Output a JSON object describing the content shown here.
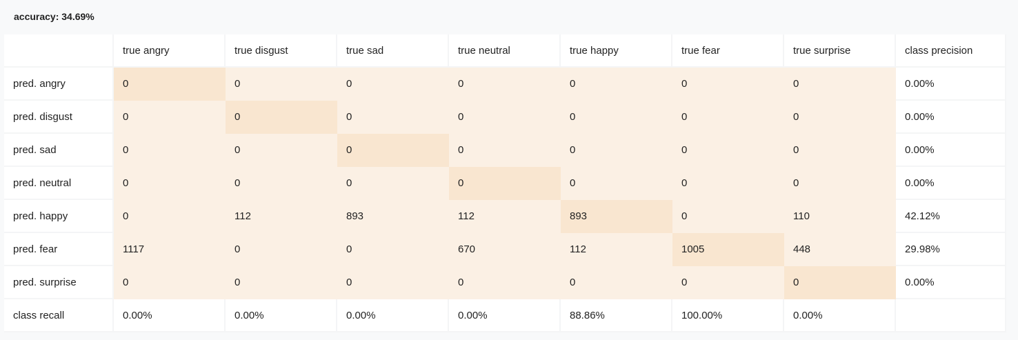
{
  "accuracy_label": "accuracy: 34.69%",
  "colors": {
    "cell": "#fbf0e4",
    "diagonal": "#f9e6d0",
    "background": "#f8f9fa"
  },
  "matrix": {
    "columns": [
      "",
      "true angry",
      "true disgust",
      "true sad",
      "true neutral",
      "true happy",
      "true fear",
      "true surprise",
      "class precision"
    ],
    "rows": [
      {
        "label": "pred. angry",
        "values": [
          "0",
          "0",
          "0",
          "0",
          "0",
          "0",
          "0"
        ],
        "precision": "0.00%"
      },
      {
        "label": "pred. disgust",
        "values": [
          "0",
          "0",
          "0",
          "0",
          "0",
          "0",
          "0"
        ],
        "precision": "0.00%"
      },
      {
        "label": "pred. sad",
        "values": [
          "0",
          "0",
          "0",
          "0",
          "0",
          "0",
          "0"
        ],
        "precision": "0.00%"
      },
      {
        "label": "pred. neutral",
        "values": [
          "0",
          "0",
          "0",
          "0",
          "0",
          "0",
          "0"
        ],
        "precision": "0.00%"
      },
      {
        "label": "pred. happy",
        "values": [
          "0",
          "112",
          "893",
          "112",
          "893",
          "0",
          "110"
        ],
        "precision": "42.12%"
      },
      {
        "label": "pred. fear",
        "values": [
          "1117",
          "0",
          "0",
          "670",
          "112",
          "1005",
          "448"
        ],
        "precision": "29.98%"
      },
      {
        "label": "pred. surprise",
        "values": [
          "0",
          "0",
          "0",
          "0",
          "0",
          "0",
          "0"
        ],
        "precision": "0.00%"
      }
    ],
    "recall": {
      "label": "class recall",
      "values": [
        "0.00%",
        "0.00%",
        "0.00%",
        "0.00%",
        "88.86%",
        "100.00%",
        "0.00%"
      ],
      "last": ""
    }
  }
}
